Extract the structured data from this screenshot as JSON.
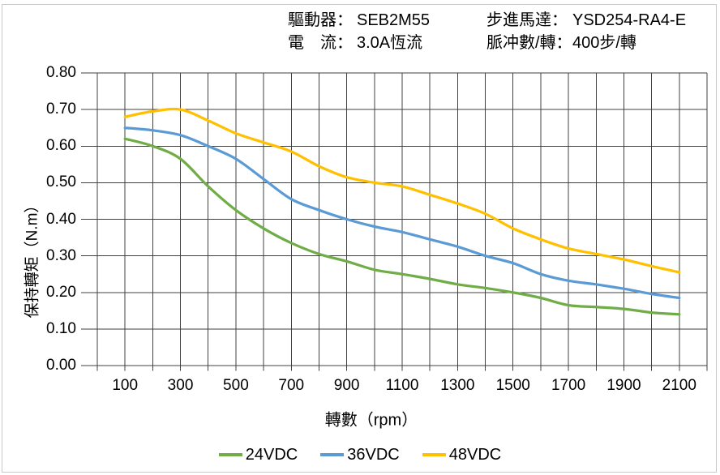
{
  "header": {
    "rows": [
      {
        "label": "驅動器：",
        "value": "SEB2M55"
      },
      {
        "label": "電　流：",
        "value": "3.0A恆流"
      },
      {
        "label": "步進馬達：",
        "value": "YSD254-RA4-E"
      },
      {
        "label": "脈冲數/轉：",
        "value": "400步/轉"
      }
    ]
  },
  "chart_data": {
    "type": "line",
    "title": "",
    "xlabel": "轉數（rpm）",
    "ylabel": "保持轉矩（N.m）",
    "x": [
      100,
      200,
      300,
      400,
      500,
      600,
      700,
      800,
      900,
      1000,
      1100,
      1200,
      1300,
      1400,
      1500,
      1600,
      1700,
      1800,
      1900,
      2000,
      2100
    ],
    "series": [
      {
        "name": "24VDC",
        "color": "#70AD47",
        "values": [
          0.62,
          0.6,
          0.565,
          0.49,
          0.425,
          0.375,
          0.335,
          0.305,
          0.285,
          0.262,
          0.25,
          0.237,
          0.222,
          0.212,
          0.2,
          0.185,
          0.165,
          0.16,
          0.155,
          0.145,
          0.14
        ]
      },
      {
        "name": "36VDC",
        "color": "#5B9BD5",
        "values": [
          0.65,
          0.643,
          0.63,
          0.6,
          0.565,
          0.51,
          0.455,
          0.425,
          0.4,
          0.38,
          0.365,
          0.345,
          0.325,
          0.3,
          0.28,
          0.25,
          0.232,
          0.222,
          0.21,
          0.196,
          0.185
        ]
      },
      {
        "name": "48VDC",
        "color": "#FFC000",
        "values": [
          0.68,
          0.695,
          0.7,
          0.67,
          0.635,
          0.61,
          0.585,
          0.545,
          0.515,
          0.5,
          0.49,
          0.467,
          0.443,
          0.415,
          0.375,
          0.345,
          0.32,
          0.305,
          0.29,
          0.272,
          0.255
        ]
      }
    ],
    "xlim": [
      0,
      2200
    ],
    "ylim": [
      0,
      0.8
    ],
    "x_grid_step": 100,
    "x_ticks": [
      100,
      300,
      500,
      700,
      900,
      1100,
      1300,
      1500,
      1700,
      1900,
      2100
    ],
    "y_ticks": [
      "0.00",
      "0.10",
      "0.20",
      "0.30",
      "0.40",
      "0.50",
      "0.60",
      "0.70",
      "0.80"
    ],
    "grid": true,
    "legend_position": "bottom"
  },
  "colors": {
    "grid": "#404040",
    "border": "#c9c9c9"
  }
}
